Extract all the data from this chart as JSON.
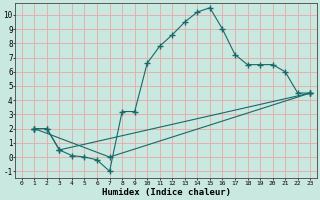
{
  "xlabel": "Humidex (Indice chaleur)",
  "bg_color": "#c8e8e0",
  "grid_color": "#e8a8a8",
  "line_color": "#1a6868",
  "xlim": [
    -0.5,
    23.5
  ],
  "ylim": [
    -1.5,
    10.8
  ],
  "xticks": [
    0,
    1,
    2,
    3,
    4,
    5,
    6,
    7,
    8,
    9,
    10,
    11,
    12,
    13,
    14,
    15,
    16,
    17,
    18,
    19,
    20,
    21,
    22,
    23
  ],
  "yticks": [
    -1,
    0,
    1,
    2,
    3,
    4,
    5,
    6,
    7,
    8,
    9,
    10
  ],
  "line1_x": [
    1,
    2,
    3,
    4,
    5,
    6,
    7,
    8,
    9,
    10,
    11,
    12,
    13,
    14,
    15,
    16,
    17,
    18,
    19,
    20,
    21,
    22,
    23
  ],
  "line1_y": [
    2,
    2,
    0.5,
    0.1,
    0.0,
    -0.2,
    -1.0,
    3.2,
    3.2,
    6.6,
    7.8,
    8.6,
    9.5,
    10.2,
    10.5,
    9.0,
    7.2,
    6.5,
    6.5,
    6.5,
    6.0,
    4.5,
    4.5
  ],
  "line2_x": [
    1,
    2,
    3,
    23
  ],
  "line2_y": [
    2,
    2,
    0.5,
    4.5
  ],
  "line3_x": [
    1,
    7,
    23
  ],
  "line3_y": [
    2,
    0.0,
    4.5
  ]
}
